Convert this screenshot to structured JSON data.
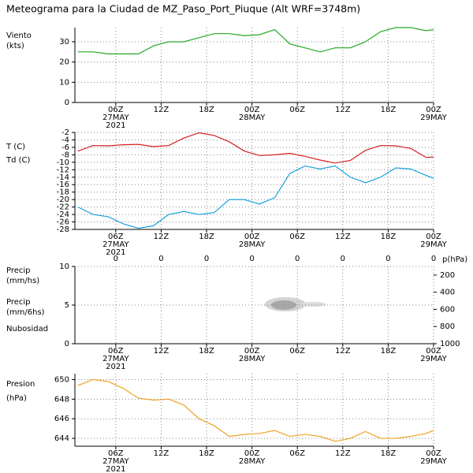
{
  "title": "Meteograma para la Ciudad de MZ_Paso_Port_Piuque (Alt WRF=3748m)",
  "time_axis": {
    "xlim": [
      0.6,
      48
    ],
    "xticks": [
      {
        "value": 6,
        "label": "06Z"
      },
      {
        "value": 12,
        "label": "12Z"
      },
      {
        "value": 18,
        "label": "18Z"
      },
      {
        "value": 24,
        "label": "00Z"
      },
      {
        "value": 30,
        "label": "06Z"
      },
      {
        "value": 36,
        "label": "12Z"
      },
      {
        "value": 42,
        "label": "18Z"
      },
      {
        "value": 48,
        "label": "00Z"
      }
    ],
    "date_labels": [
      {
        "value": 6,
        "label": "27MAY"
      },
      {
        "value": 24,
        "label": "28MAY"
      },
      {
        "value": 48,
        "label": "29MAY"
      }
    ],
    "year": "2021"
  },
  "chart_data": [
    {
      "type": "line",
      "labels": [
        {
          "text": "Viento",
          "color": "#22aa22"
        },
        {
          "text": "(kts)",
          "color": "#22aa22"
        }
      ],
      "ylim": [
        0,
        37
      ],
      "yticks": [
        0,
        10,
        20,
        30
      ],
      "grid": true,
      "series": [
        {
          "name": "Viento",
          "color": "#22aa22",
          "x": [
            1,
            3,
            5,
            7,
            9,
            11,
            13,
            15,
            17,
            19,
            21,
            23,
            25,
            27,
            29,
            31,
            33,
            35,
            37,
            39,
            41,
            43,
            45,
            47,
            48
          ],
          "values": [
            25,
            25,
            24,
            24,
            24,
            28,
            30,
            30,
            32,
            34,
            34,
            33,
            33.5,
            36,
            29,
            27,
            25,
            27,
            27,
            30,
            35,
            37,
            37,
            35.5,
            36
          ]
        }
      ]
    },
    {
      "type": "line",
      "labels": [
        {
          "text": "T (C)",
          "color": "#d62020"
        },
        {
          "text": "Td (C)",
          "color": "#1aa0e0"
        }
      ],
      "ylim": [
        -28,
        -2
      ],
      "yticks": [
        -28,
        -26,
        -24,
        -22,
        -20,
        -18,
        -16,
        -14,
        -12,
        -10,
        -8,
        -6,
        -4,
        -2
      ],
      "grid": true,
      "series": [
        {
          "name": "T (C)",
          "color": "#d62020",
          "x": [
            1,
            3,
            5,
            7,
            9,
            11,
            13,
            15,
            17,
            19,
            21,
            23,
            25,
            27,
            29,
            31,
            33,
            35,
            37,
            39,
            41,
            43,
            45,
            47,
            48
          ],
          "values": [
            -7,
            -5.5,
            -5.6,
            -5.3,
            -5.2,
            -5.8,
            -5.5,
            -3.5,
            -2.1,
            -2.8,
            -4.5,
            -7,
            -8.2,
            -8,
            -7.6,
            -8.4,
            -9.4,
            -10.2,
            -9.5,
            -6.8,
            -5.5,
            -5.6,
            -6.3,
            -8.7,
            -8.6
          ]
        },
        {
          "name": "Td (C)",
          "color": "#1aa0e0",
          "x": [
            1,
            3,
            5,
            7,
            9,
            11,
            13,
            15,
            17,
            19,
            21,
            23,
            25,
            27,
            29,
            31,
            33,
            35,
            37,
            39,
            41,
            43,
            45,
            47,
            48
          ],
          "values": [
            -22,
            -24,
            -24.6,
            -26.5,
            -27.7,
            -27,
            -24,
            -23.2,
            -24,
            -23.5,
            -20,
            -20,
            -21.2,
            -19.5,
            -13,
            -11,
            -11.8,
            -11,
            -14,
            -15.5,
            -14,
            -11.5,
            -11.8,
            -13.5,
            -14.3
          ]
        }
      ]
    },
    {
      "type": "line",
      "labels": [
        {
          "text": "Precip",
          "color": "#1aa0e0"
        },
        {
          "text": "(mm/hs)",
          "color": "#1aa0e0"
        },
        {
          "text": "Precip",
          "color": "#22aa22"
        },
        {
          "text": "(mm/6hs)",
          "color": "#22aa22"
        },
        {
          "text": "Nubosidad",
          "color": "#555555"
        }
      ],
      "ylim": [
        0,
        10
      ],
      "yticks": [
        0,
        5,
        10
      ],
      "grid": true,
      "y2label": "p(hPa)",
      "y2lim": [
        1000,
        100
      ],
      "y2ticks": [
        200,
        400,
        600,
        800,
        1000
      ],
      "precip_6h": {
        "color": "#22aa22",
        "x": [
          6,
          12,
          18,
          24,
          30,
          36,
          42,
          48
        ],
        "values": [
          0,
          0,
          0,
          0,
          0,
          0,
          0,
          0
        ]
      },
      "series": []
    },
    {
      "type": "line",
      "labels": [
        {
          "text": "Presion",
          "color": "#f0a020"
        },
        {
          "text": "(hPa)",
          "color": "#f0a020"
        }
      ],
      "ylim": [
        643.2,
        650.6
      ],
      "yticks": [
        644,
        646,
        648,
        650
      ],
      "grid": true,
      "series": [
        {
          "name": "Presion",
          "color": "#f0a020",
          "x": [
            1,
            3,
            5,
            7,
            9,
            11,
            13,
            15,
            17,
            19,
            21,
            23,
            25,
            27,
            29,
            31,
            33,
            35,
            37,
            39,
            41,
            43,
            45,
            47,
            48
          ],
          "values": [
            649.4,
            650,
            649.8,
            649.1,
            648.1,
            647.9,
            648,
            647.4,
            646,
            645.3,
            644.2,
            644.4,
            644.5,
            644.8,
            644.2,
            644.4,
            644.2,
            643.7,
            644,
            644.7,
            644,
            644,
            644.2,
            644.5,
            644.8
          ]
        }
      ]
    }
  ]
}
